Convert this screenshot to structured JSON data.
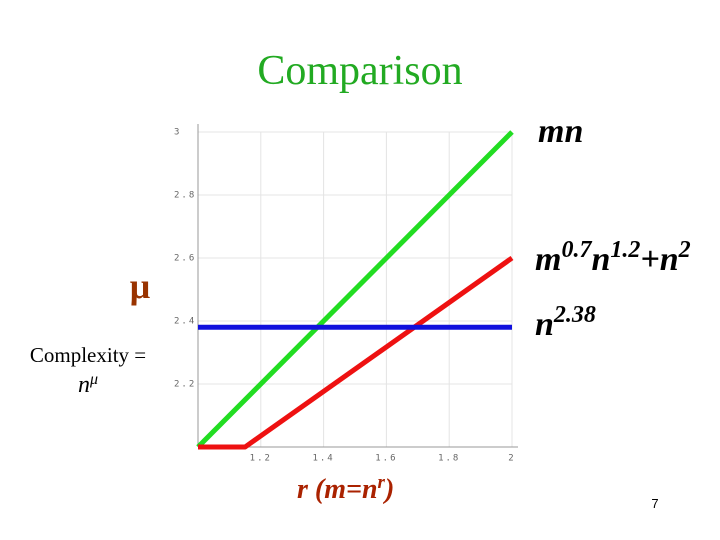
{
  "chart_data": {
    "type": "line",
    "title": "Comparison",
    "xlim": [
      1,
      2
    ],
    "ylim": [
      2,
      3
    ],
    "xticks": [
      1.2,
      1.4,
      1.6,
      1.8,
      2
    ],
    "yticks": [
      2.2,
      2.4,
      2.6,
      2.8,
      3
    ],
    "grid": true,
    "series": [
      {
        "name_parts": [
          {
            "text": "mn"
          }
        ],
        "color": "#22dd22",
        "x": [
          1,
          2
        ],
        "values": [
          2,
          3
        ]
      },
      {
        "name_parts": [
          {
            "text": "m"
          },
          {
            "sup": "0.7"
          },
          {
            "text": "n"
          },
          {
            "sup": "1.2"
          },
          {
            "text": "+n"
          },
          {
            "sup": "2"
          }
        ],
        "color": "#ee1111",
        "x": [
          1,
          1.15,
          2
        ],
        "values": [
          2,
          2,
          2.6
        ]
      },
      {
        "name_parts": [
          {
            "text": "n"
          },
          {
            "sup": "2.38"
          }
        ],
        "color": "#1010dd",
        "x": [
          1,
          2
        ],
        "values": [
          2.38,
          2.38
        ]
      }
    ],
    "y_label": "μ",
    "y_note": "Complexity =",
    "y_note_parts": [
      {
        "text": "n"
      },
      {
        "sup": "μ"
      }
    ],
    "x_label_parts": [
      {
        "text": "r  (m=n"
      },
      {
        "sup": "r"
      },
      {
        "text": ")"
      }
    ],
    "page_number": "7"
  }
}
